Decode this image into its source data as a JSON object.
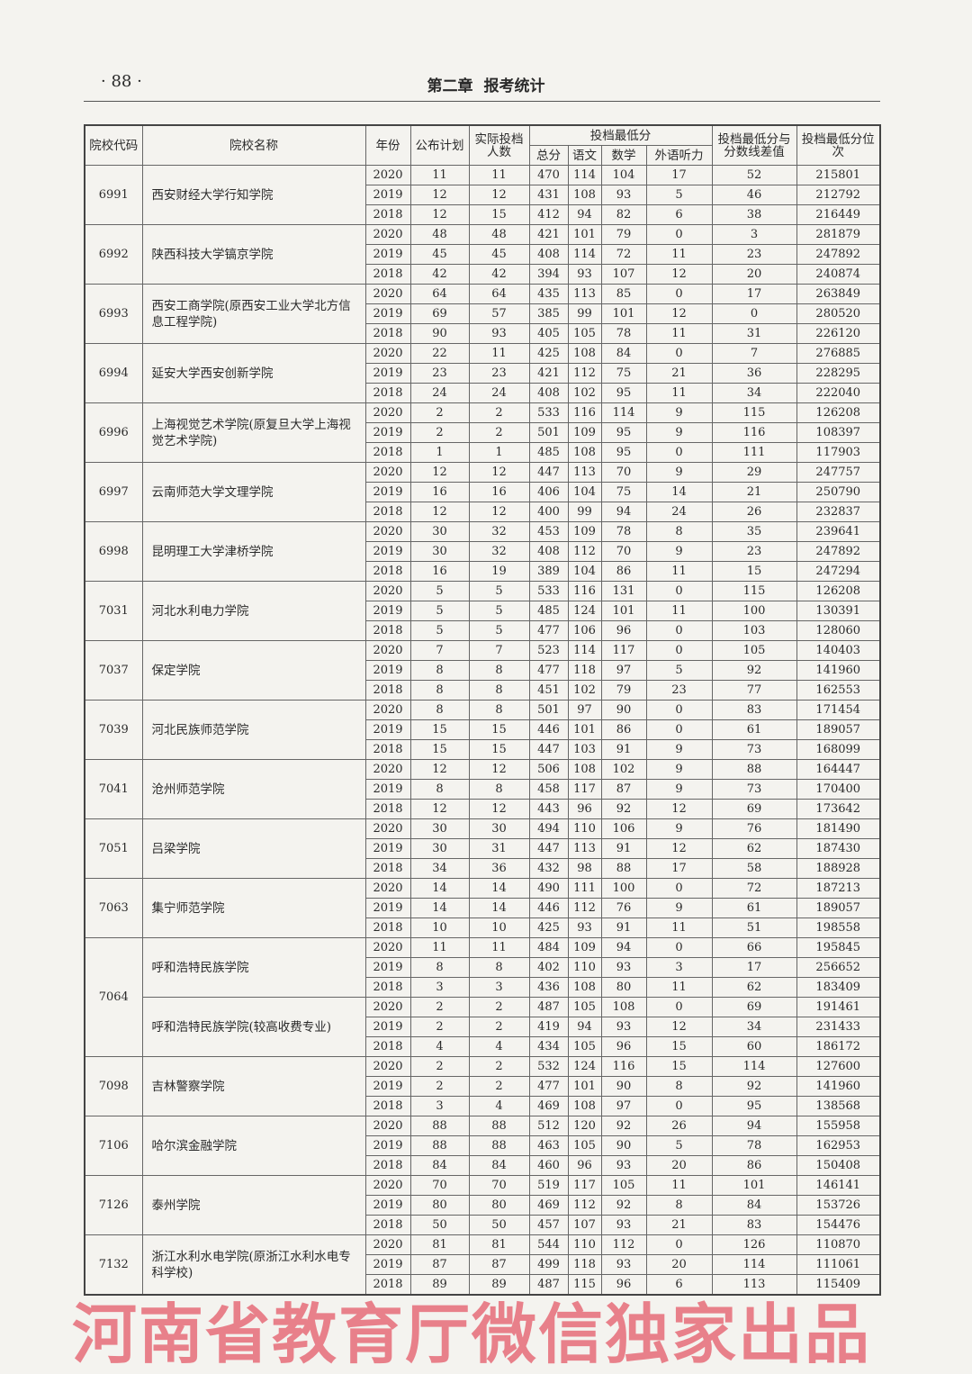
{
  "header": {
    "page_number": "· 88 ·",
    "chapter": "第二章",
    "chapter_title": "报考统计"
  },
  "watermark": "河南省教育厅微信独家出品",
  "table": {
    "headers": {
      "code": "院校代码",
      "name": "院校名称",
      "year": "年份",
      "plan": "公布计划",
      "actual": "实际投档人数",
      "min_score_group": "投档最低分",
      "total": "总分",
      "chinese": "语文",
      "math": "数学",
      "foreign": "外语听力",
      "diff": "投档最低分与分数线差值",
      "rank": "投档最低分位次"
    },
    "groups": [
      {
        "code": "6991",
        "schools": [
          {
            "name": "西安财经大学行知学院",
            "rows": [
              [
                "2020",
                "11",
                "11",
                "470",
                "114",
                "104",
                "17",
                "52",
                "215801"
              ],
              [
                "2019",
                "12",
                "12",
                "431",
                "108",
                "93",
                "5",
                "46",
                "212792"
              ],
              [
                "2018",
                "12",
                "15",
                "412",
                "94",
                "82",
                "6",
                "38",
                "216449"
              ]
            ]
          }
        ]
      },
      {
        "code": "6992",
        "schools": [
          {
            "name": "陕西科技大学镐京学院",
            "rows": [
              [
                "2020",
                "48",
                "48",
                "421",
                "101",
                "79",
                "0",
                "3",
                "281879"
              ],
              [
                "2019",
                "45",
                "45",
                "408",
                "114",
                "72",
                "11",
                "23",
                "247892"
              ],
              [
                "2018",
                "42",
                "42",
                "394",
                "93",
                "107",
                "12",
                "20",
                "240874"
              ]
            ]
          }
        ]
      },
      {
        "code": "6993",
        "schools": [
          {
            "name": "西安工商学院(原西安工业大学北方信息工程学院)",
            "rows": [
              [
                "2020",
                "64",
                "64",
                "435",
                "113",
                "85",
                "0",
                "17",
                "263849"
              ],
              [
                "2019",
                "69",
                "57",
                "385",
                "99",
                "101",
                "12",
                "0",
                "280520"
              ],
              [
                "2018",
                "90",
                "93",
                "405",
                "105",
                "78",
                "11",
                "31",
                "226120"
              ]
            ]
          }
        ]
      },
      {
        "code": "6994",
        "schools": [
          {
            "name": "延安大学西安创新学院",
            "rows": [
              [
                "2020",
                "22",
                "11",
                "425",
                "108",
                "84",
                "0",
                "7",
                "276885"
              ],
              [
                "2019",
                "23",
                "23",
                "421",
                "112",
                "75",
                "21",
                "36",
                "228295"
              ],
              [
                "2018",
                "24",
                "24",
                "408",
                "102",
                "95",
                "11",
                "34",
                "222040"
              ]
            ]
          }
        ]
      },
      {
        "code": "6996",
        "schools": [
          {
            "name": "上海视觉艺术学院(原复旦大学上海视觉艺术学院)",
            "rows": [
              [
                "2020",
                "2",
                "2",
                "533",
                "116",
                "114",
                "9",
                "115",
                "126208"
              ],
              [
                "2019",
                "2",
                "2",
                "501",
                "109",
                "95",
                "9",
                "116",
                "108397"
              ],
              [
                "2018",
                "1",
                "1",
                "485",
                "108",
                "95",
                "0",
                "111",
                "117903"
              ]
            ]
          }
        ]
      },
      {
        "code": "6997",
        "schools": [
          {
            "name": "云南师范大学文理学院",
            "rows": [
              [
                "2020",
                "12",
                "12",
                "447",
                "113",
                "70",
                "9",
                "29",
                "247757"
              ],
              [
                "2019",
                "16",
                "16",
                "406",
                "104",
                "75",
                "14",
                "21",
                "250790"
              ],
              [
                "2018",
                "12",
                "12",
                "400",
                "99",
                "94",
                "24",
                "26",
                "232837"
              ]
            ]
          }
        ]
      },
      {
        "code": "6998",
        "schools": [
          {
            "name": "昆明理工大学津桥学院",
            "rows": [
              [
                "2020",
                "30",
                "32",
                "453",
                "109",
                "78",
                "8",
                "35",
                "239641"
              ],
              [
                "2019",
                "30",
                "32",
                "408",
                "112",
                "70",
                "9",
                "23",
                "247892"
              ],
              [
                "2018",
                "16",
                "19",
                "389",
                "104",
                "86",
                "11",
                "15",
                "247294"
              ]
            ]
          }
        ]
      },
      {
        "code": "7031",
        "schools": [
          {
            "name": "河北水利电力学院",
            "rows": [
              [
                "2020",
                "5",
                "5",
                "533",
                "116",
                "131",
                "0",
                "115",
                "126208"
              ],
              [
                "2019",
                "5",
                "5",
                "485",
                "124",
                "101",
                "11",
                "100",
                "130391"
              ],
              [
                "2018",
                "5",
                "5",
                "477",
                "106",
                "96",
                "0",
                "103",
                "128060"
              ]
            ]
          }
        ]
      },
      {
        "code": "7037",
        "schools": [
          {
            "name": "保定学院",
            "rows": [
              [
                "2020",
                "7",
                "7",
                "523",
                "114",
                "117",
                "0",
                "105",
                "140403"
              ],
              [
                "2019",
                "8",
                "8",
                "477",
                "118",
                "97",
                "5",
                "92",
                "141960"
              ],
              [
                "2018",
                "8",
                "8",
                "451",
                "102",
                "79",
                "23",
                "77",
                "162553"
              ]
            ]
          }
        ]
      },
      {
        "code": "7039",
        "schools": [
          {
            "name": "河北民族师范学院",
            "rows": [
              [
                "2020",
                "8",
                "8",
                "501",
                "97",
                "90",
                "0",
                "83",
                "171454"
              ],
              [
                "2019",
                "15",
                "15",
                "446",
                "101",
                "86",
                "0",
                "61",
                "189057"
              ],
              [
                "2018",
                "15",
                "15",
                "447",
                "103",
                "91",
                "9",
                "73",
                "168099"
              ]
            ]
          }
        ]
      },
      {
        "code": "7041",
        "schools": [
          {
            "name": "沧州师范学院",
            "rows": [
              [
                "2020",
                "12",
                "12",
                "506",
                "108",
                "102",
                "9",
                "88",
                "164447"
              ],
              [
                "2019",
                "8",
                "8",
                "458",
                "117",
                "87",
                "9",
                "73",
                "170400"
              ],
              [
                "2018",
                "12",
                "12",
                "443",
                "96",
                "92",
                "12",
                "69",
                "173642"
              ]
            ]
          }
        ]
      },
      {
        "code": "7051",
        "schools": [
          {
            "name": "吕梁学院",
            "rows": [
              [
                "2020",
                "30",
                "30",
                "494",
                "110",
                "106",
                "9",
                "76",
                "181490"
              ],
              [
                "2019",
                "30",
                "31",
                "447",
                "113",
                "91",
                "12",
                "62",
                "187430"
              ],
              [
                "2018",
                "34",
                "36",
                "432",
                "98",
                "88",
                "17",
                "58",
                "188928"
              ]
            ]
          }
        ]
      },
      {
        "code": "7063",
        "schools": [
          {
            "name": "集宁师范学院",
            "rows": [
              [
                "2020",
                "14",
                "14",
                "490",
                "111",
                "100",
                "0",
                "72",
                "187213"
              ],
              [
                "2019",
                "14",
                "14",
                "446",
                "112",
                "76",
                "9",
                "61",
                "189057"
              ],
              [
                "2018",
                "10",
                "10",
                "425",
                "93",
                "91",
                "11",
                "51",
                "198558"
              ]
            ]
          }
        ]
      },
      {
        "code": "7064",
        "schools": [
          {
            "name": "呼和浩特民族学院",
            "rows": [
              [
                "2020",
                "11",
                "11",
                "484",
                "109",
                "94",
                "0",
                "66",
                "195845"
              ],
              [
                "2019",
                "8",
                "8",
                "402",
                "110",
                "93",
                "3",
                "17",
                "256652"
              ],
              [
                "2018",
                "3",
                "3",
                "436",
                "108",
                "80",
                "11",
                "62",
                "183409"
              ]
            ]
          },
          {
            "name": "呼和浩特民族学院(较高收费专业)",
            "rows": [
              [
                "2020",
                "2",
                "2",
                "487",
                "105",
                "108",
                "0",
                "69",
                "191461"
              ],
              [
                "2019",
                "2",
                "2",
                "419",
                "94",
                "93",
                "12",
                "34",
                "231433"
              ],
              [
                "2018",
                "4",
                "4",
                "434",
                "105",
                "96",
                "15",
                "60",
                "186172"
              ]
            ]
          }
        ]
      },
      {
        "code": "7098",
        "schools": [
          {
            "name": "吉林警察学院",
            "rows": [
              [
                "2020",
                "2",
                "2",
                "532",
                "124",
                "116",
                "15",
                "114",
                "127600"
              ],
              [
                "2019",
                "2",
                "2",
                "477",
                "101",
                "90",
                "8",
                "92",
                "141960"
              ],
              [
                "2018",
                "3",
                "4",
                "469",
                "108",
                "97",
                "0",
                "95",
                "138568"
              ]
            ]
          }
        ]
      },
      {
        "code": "7106",
        "schools": [
          {
            "name": "哈尔滨金融学院",
            "rows": [
              [
                "2020",
                "88",
                "88",
                "512",
                "120",
                "92",
                "26",
                "94",
                "155958"
              ],
              [
                "2019",
                "88",
                "88",
                "463",
                "105",
                "90",
                "5",
                "78",
                "162953"
              ],
              [
                "2018",
                "84",
                "84",
                "460",
                "96",
                "93",
                "20",
                "86",
                "150408"
              ]
            ]
          }
        ]
      },
      {
        "code": "7126",
        "schools": [
          {
            "name": "泰州学院",
            "rows": [
              [
                "2020",
                "70",
                "70",
                "519",
                "117",
                "105",
                "11",
                "101",
                "146141"
              ],
              [
                "2019",
                "80",
                "80",
                "469",
                "112",
                "92",
                "8",
                "84",
                "153726"
              ],
              [
                "2018",
                "50",
                "50",
                "457",
                "107",
                "93",
                "21",
                "83",
                "154476"
              ]
            ]
          }
        ]
      },
      {
        "code": "7132",
        "schools": [
          {
            "name": "浙江水利水电学院(原浙江水利水电专科学校)",
            "rows": [
              [
                "2020",
                "81",
                "81",
                "544",
                "110",
                "112",
                "0",
                "126",
                "110870"
              ],
              [
                "2019",
                "87",
                "87",
                "499",
                "118",
                "93",
                "20",
                "114",
                "111061"
              ],
              [
                "2018",
                "89",
                "89",
                "487",
                "115",
                "96",
                "6",
                "113",
                "115409"
              ]
            ]
          }
        ]
      }
    ]
  }
}
